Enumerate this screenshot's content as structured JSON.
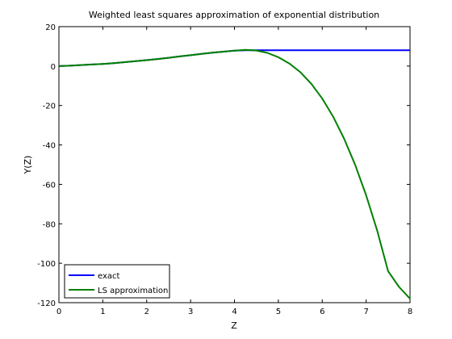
{
  "chart_data": {
    "type": "line",
    "title": "Weighted least squares approximation of exponential distribution",
    "xlabel": "Z",
    "ylabel": "Y(Z)",
    "xlim": [
      0,
      8
    ],
    "ylim": [
      -120,
      20
    ],
    "xticks": [
      0,
      1,
      2,
      3,
      4,
      5,
      6,
      7,
      8
    ],
    "yticks": [
      20,
      0,
      -20,
      -40,
      -60,
      -80,
      -100,
      -120
    ],
    "grid": false,
    "legend_position": "bottom-left",
    "series": [
      {
        "name": "exact",
        "color": "#0000ff",
        "x": [
          0,
          0.25,
          0.5,
          0.75,
          1,
          1.25,
          1.5,
          1.75,
          2,
          2.25,
          2.5,
          2.75,
          3,
          3.25,
          3.5,
          3.75,
          4,
          4.25,
          4.5,
          5,
          5.5,
          6,
          6.5,
          7,
          7.5,
          8
        ],
        "y": [
          0,
          0.2,
          0.5,
          0.8,
          1.1,
          1.5,
          2.0,
          2.5,
          3.0,
          3.6,
          4.2,
          4.9,
          5.5,
          6.2,
          6.8,
          7.3,
          7.8,
          8.0,
          8.0,
          8.0,
          8.0,
          8.0,
          8.0,
          8.0,
          8.0,
          8.0
        ]
      },
      {
        "name": "LS approximation",
        "color": "#008000",
        "x": [
          0,
          0.25,
          0.5,
          0.75,
          1,
          1.25,
          1.5,
          1.75,
          2,
          2.25,
          2.5,
          2.75,
          3,
          3.25,
          3.5,
          3.75,
          4,
          4.25,
          4.5,
          4.75,
          5,
          5.25,
          5.5,
          5.75,
          6,
          6.25,
          6.5,
          6.75,
          7,
          7.25,
          7.5,
          7.75,
          8
        ],
        "y": [
          0,
          0.2,
          0.5,
          0.8,
          1.1,
          1.5,
          2.0,
          2.5,
          3.0,
          3.6,
          4.2,
          4.9,
          5.5,
          6.2,
          6.8,
          7.3,
          7.8,
          8.2,
          7.9,
          6.7,
          4.5,
          1.3,
          -3.1,
          -9.0,
          -16.5,
          -25.7,
          -36.9,
          -50.1,
          -65.5,
          -83.3,
          -104,
          -112,
          -118
        ]
      }
    ]
  }
}
